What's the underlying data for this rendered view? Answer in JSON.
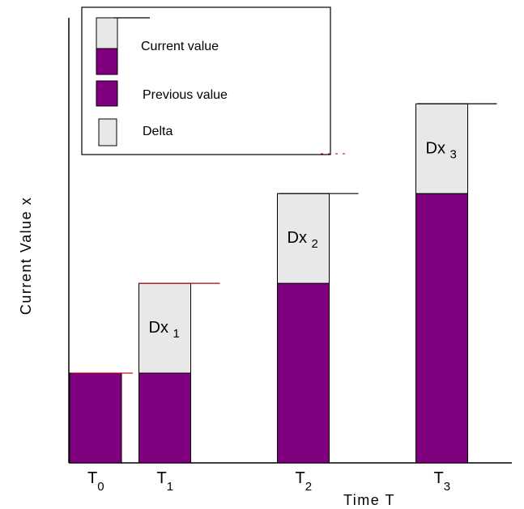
{
  "chart_data": {
    "type": "bar",
    "categories": [
      {
        "main": "T",
        "sub": "0"
      },
      {
        "main": "T",
        "sub": "1"
      },
      {
        "main": "T",
        "sub": "2"
      },
      {
        "main": "T",
        "sub": "3"
      }
    ],
    "x": [
      0,
      1,
      3,
      5
    ],
    "series": [
      {
        "name": "Previous value",
        "values": [
          1,
          1,
          2,
          3
        ]
      },
      {
        "name": "Delta",
        "values": [
          0,
          1,
          1,
          1
        ]
      }
    ],
    "delta_labels": [
      null,
      {
        "main": "Dx",
        "sub": "1"
      },
      {
        "main": "Dx",
        "sub": "2"
      },
      {
        "main": "Dx",
        "sub": "3"
      }
    ],
    "xlabel": "Time T",
    "ylabel": "Current Value x",
    "ylim": [
      0,
      4
    ],
    "legend": {
      "position": "top-left",
      "entries": [
        {
          "label": "Current value",
          "type": "stacked"
        },
        {
          "label": "Previous value",
          "type": "previous"
        },
        {
          "label": "Delta",
          "type": "delta"
        }
      ]
    },
    "colors": {
      "previous": "#800080",
      "delta": "#e8e8e8",
      "outline": "#000000",
      "accent_line": "#b00000"
    },
    "grid": false
  }
}
